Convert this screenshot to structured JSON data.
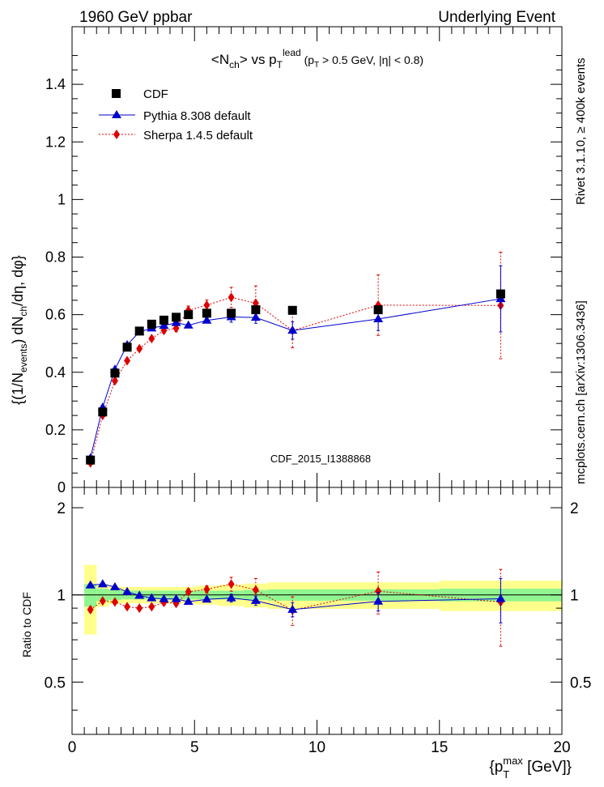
{
  "header": {
    "left": "1960 GeV ppbar",
    "right": "Underlying Event",
    "side_top": "Rivet 3.1.10, ≥ 400k events",
    "side_bottom": "mcplots.cern.ch [arXiv:1306.3436]"
  },
  "chart_data": [
    {
      "type": "scatter",
      "title": "<Nch> vs pT lead (pT > 0.5 GeV, |η| < 0.8)",
      "watermark": "CDF_2015_I1388868",
      "ylabel": "{(1/Nevents) dNch/dη, dφ}",
      "xlim": [
        0,
        20
      ],
      "ylim": [
        0,
        1.6
      ],
      "y_ticks": [
        "0",
        "0.2",
        "0.4",
        "0.6",
        "0.8",
        "1",
        "1.2",
        "1.4"
      ],
      "legend_position": "top-left",
      "series": [
        {
          "name": "CDF",
          "color": "#000000",
          "marker": "square",
          "x": [
            0.75,
            1.25,
            1.75,
            2.25,
            2.75,
            3.25,
            3.75,
            4.25,
            4.75,
            5.5,
            6.5,
            7.5,
            9.0,
            12.5,
            17.5
          ],
          "values": [
            0.095,
            0.262,
            0.397,
            0.487,
            0.543,
            0.567,
            0.581,
            0.591,
            0.6,
            0.605,
            0.605,
            0.617,
            0.615,
            0.617,
            0.672
          ]
        },
        {
          "name": "Pythia 8.308 default",
          "color": "#0000cc",
          "marker": "triangle",
          "line": "solid",
          "x": [
            0.75,
            1.25,
            1.75,
            2.25,
            2.75,
            3.25,
            3.75,
            4.25,
            4.75,
            5.5,
            6.5,
            7.5,
            9.0,
            12.5,
            17.5
          ],
          "values": [
            0.102,
            0.278,
            0.41,
            0.495,
            0.54,
            0.553,
            0.562,
            0.572,
            0.563,
            0.58,
            0.592,
            0.59,
            0.545,
            0.585,
            0.655
          ],
          "errors": [
            0.004,
            0.004,
            0.004,
            0.004,
            0.004,
            0.004,
            0.005,
            0.006,
            0.006,
            0.008,
            0.018,
            0.02,
            0.03,
            0.04,
            0.115
          ]
        },
        {
          "name": "Sherpa 1.4.5 default",
          "color": "#dd0000",
          "marker": "diamond",
          "line": "dotted",
          "x": [
            0.75,
            1.25,
            1.75,
            2.25,
            2.75,
            3.25,
            3.75,
            4.25,
            4.75,
            5.5,
            6.5,
            7.5,
            9.0,
            12.5,
            17.5
          ],
          "values": [
            0.085,
            0.25,
            0.37,
            0.44,
            0.482,
            0.517,
            0.545,
            0.553,
            0.615,
            0.633,
            0.66,
            0.64,
            0.545,
            0.633,
            0.632
          ],
          "errors": [
            0.004,
            0.004,
            0.004,
            0.005,
            0.006,
            0.007,
            0.01,
            0.012,
            0.015,
            0.018,
            0.035,
            0.06,
            0.06,
            0.105,
            0.185
          ]
        }
      ]
    },
    {
      "type": "scatter",
      "ylabel": "Ratio to CDF",
      "xlabel": "{pT max [GeV]}",
      "xlim": [
        0,
        20
      ],
      "ylim": [
        0.33,
        2.35
      ],
      "y_ticks": [
        "0.5",
        "1",
        "2"
      ],
      "x_ticks": [
        "0",
        "5",
        "10",
        "15",
        "20"
      ],
      "bands": {
        "edges": [
          0.5,
          1.0,
          1.5,
          2.0,
          2.5,
          3.0,
          3.5,
          4.0,
          4.5,
          5.0,
          6.0,
          7.0,
          8.0,
          10.0,
          15.0,
          20.0
        ],
        "inner_color": "#90f590",
        "outer_color": "#ffff8c",
        "inner_half_width": [
          0.09,
          0.05,
          0.04,
          0.035,
          0.035,
          0.035,
          0.035,
          0.035,
          0.035,
          0.035,
          0.035,
          0.04,
          0.045,
          0.045,
          0.05
        ],
        "outer_half_width": [
          0.27,
          0.09,
          0.07,
          0.065,
          0.065,
          0.065,
          0.065,
          0.065,
          0.065,
          0.075,
          0.085,
          0.095,
          0.105,
          0.105,
          0.12
        ]
      },
      "series": [
        {
          "name": "Pythia 8.308 default",
          "color": "#0000cc",
          "marker": "triangle",
          "line": "solid",
          "x": [
            0.75,
            1.25,
            1.75,
            2.25,
            2.75,
            3.25,
            3.75,
            4.25,
            4.75,
            5.5,
            6.5,
            7.5,
            9.0,
            12.5,
            17.5
          ],
          "values": [
            1.08,
            1.09,
            1.065,
            1.025,
            0.995,
            0.975,
            0.968,
            0.968,
            0.948,
            0.965,
            0.975,
            0.955,
            0.89,
            0.95,
            0.97
          ],
          "errors": [
            0.015,
            0.01,
            0.01,
            0.01,
            0.01,
            0.01,
            0.01,
            0.01,
            0.01,
            0.015,
            0.03,
            0.035,
            0.05,
            0.07,
            0.17
          ]
        },
        {
          "name": "Sherpa 1.4.5 default",
          "color": "#dd0000",
          "marker": "diamond",
          "line": "dotted",
          "x": [
            0.75,
            1.25,
            1.75,
            2.25,
            2.75,
            3.25,
            3.75,
            4.25,
            4.75,
            5.5,
            6.5,
            7.5,
            9.0,
            12.5,
            17.5
          ],
          "values": [
            0.89,
            0.953,
            0.945,
            0.91,
            0.9,
            0.91,
            0.942,
            0.935,
            1.025,
            1.045,
            1.09,
            1.04,
            0.885,
            1.03,
            0.945
          ],
          "errors": [
            0.02,
            0.015,
            0.015,
            0.015,
            0.015,
            0.015,
            0.02,
            0.02,
            0.025,
            0.03,
            0.06,
            0.1,
            0.1,
            0.17,
            0.28
          ]
        }
      ]
    }
  ]
}
